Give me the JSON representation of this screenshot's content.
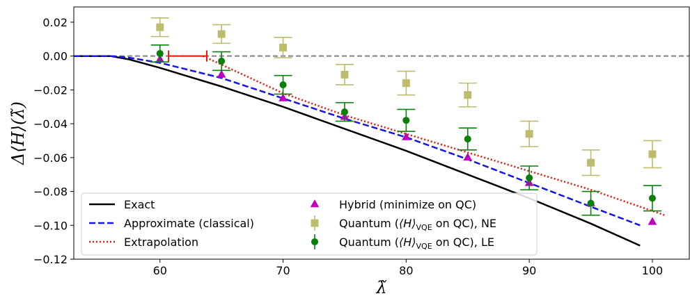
{
  "chart_data": {
    "type": "line",
    "title": "",
    "xlabel": "λ̃",
    "ylabel": "Δ⟨H⟩(λ̃)",
    "xlim": [
      53,
      103
    ],
    "ylim": [
      -0.12,
      0.029
    ],
    "x_ticks": [
      60,
      70,
      80,
      90,
      100
    ],
    "x_tick_labels": [
      "60",
      "70",
      "80",
      "90",
      "100"
    ],
    "y_ticks": [
      0.02,
      0.0,
      -0.02,
      -0.04,
      -0.06,
      -0.08,
      -0.1,
      -0.12
    ],
    "y_tick_labels": [
      "0.02",
      "0.00",
      "−0.02",
      "−0.04",
      "−0.06",
      "−0.08",
      "−0.10",
      "−0.12"
    ],
    "grid": false,
    "legend_placement": "lower-left",
    "reference_line": {
      "y": 0.0,
      "color": "#808080",
      "style": "dashed"
    },
    "extrapolation_marker": {
      "x": [
        60.7,
        63.8
      ],
      "y": 0.0,
      "color": "#e8160c"
    },
    "series": [
      {
        "name": "Exact",
        "kind": "line",
        "color": "#000000",
        "style": "solid",
        "x": [
          53,
          56,
          57.5,
          60,
          65,
          70,
          75,
          80,
          85,
          90,
          95,
          99
        ],
        "y": [
          0.0,
          0.0,
          -0.002,
          -0.007,
          -0.018,
          -0.03,
          -0.043,
          -0.056,
          -0.07,
          -0.084,
          -0.099,
          -0.112
        ]
      },
      {
        "name": "Approximate (classical)",
        "kind": "line",
        "color": "#1414e6",
        "style": "dashed",
        "x": [
          53,
          56,
          57.5,
          60,
          65,
          70,
          75,
          80,
          85,
          90,
          95,
          99
        ],
        "y": [
          0.0,
          0.0,
          -0.001,
          -0.004,
          -0.013,
          -0.025,
          -0.037,
          -0.048,
          -0.061,
          -0.075,
          -0.089,
          -0.1
        ]
      },
      {
        "name": "Extrapolation",
        "kind": "line",
        "color": "#e8160c",
        "style": "dotted",
        "x": [
          63.5,
          70,
          75,
          80,
          85,
          90,
          95,
          101
        ],
        "y": [
          0.0,
          -0.022,
          -0.035,
          -0.046,
          -0.057,
          -0.068,
          -0.079,
          -0.094
        ]
      },
      {
        "name": "Hybrid (minimize on QC)",
        "kind": "scatter",
        "marker": "triangle",
        "color": "#bf00bf",
        "x": [
          60,
          65,
          70,
          75,
          80,
          85,
          90,
          95,
          100
        ],
        "y": [
          -0.002,
          -0.011,
          -0.025,
          -0.036,
          -0.048,
          -0.06,
          -0.075,
          -0.087,
          -0.098
        ]
      },
      {
        "name": "Quantum (⟨H⟩VQE on QC), NE",
        "kind": "scatter",
        "marker": "square",
        "color": "#bcbc6c",
        "x": [
          60,
          65,
          70,
          75,
          80,
          85,
          90,
          95,
          100
        ],
        "y": [
          0.017,
          0.013,
          0.005,
          -0.011,
          -0.016,
          -0.023,
          -0.046,
          -0.063,
          -0.058
        ],
        "error": [
          0.0055,
          0.0055,
          0.006,
          0.006,
          0.007,
          0.007,
          0.0075,
          0.0075,
          0.008
        ]
      },
      {
        "name": "Quantum (⟨H⟩VQE on QC), LE",
        "kind": "scatter",
        "marker": "circle",
        "color": "#0a800a",
        "x": [
          60,
          65,
          70,
          75,
          80,
          85,
          90,
          95,
          100
        ],
        "y": [
          0.0015,
          -0.003,
          -0.017,
          -0.033,
          -0.038,
          -0.049,
          -0.072,
          -0.087,
          -0.084
        ],
        "error": [
          0.005,
          0.0055,
          0.0055,
          0.0055,
          0.0065,
          0.0065,
          0.007,
          0.007,
          0.0075
        ]
      }
    ]
  },
  "legend": {
    "col1": [
      {
        "label": "Exact",
        "series": 0
      },
      {
        "label": "Approximate (classical)",
        "series": 1
      },
      {
        "label": "Extrapolation",
        "series": 2
      }
    ],
    "col2": [
      {
        "label": "Hybrid (minimize on QC)",
        "series": 3
      },
      {
        "label_pre": "Quantum (",
        "label_math": "⟨H⟩",
        "label_sub": "VQE",
        "label_post": " on QC), NE",
        "series": 4
      },
      {
        "label_pre": "Quantum (",
        "label_math": "⟨H⟩",
        "label_sub": "VQE",
        "label_post": " on QC), LE",
        "series": 5
      }
    ]
  }
}
